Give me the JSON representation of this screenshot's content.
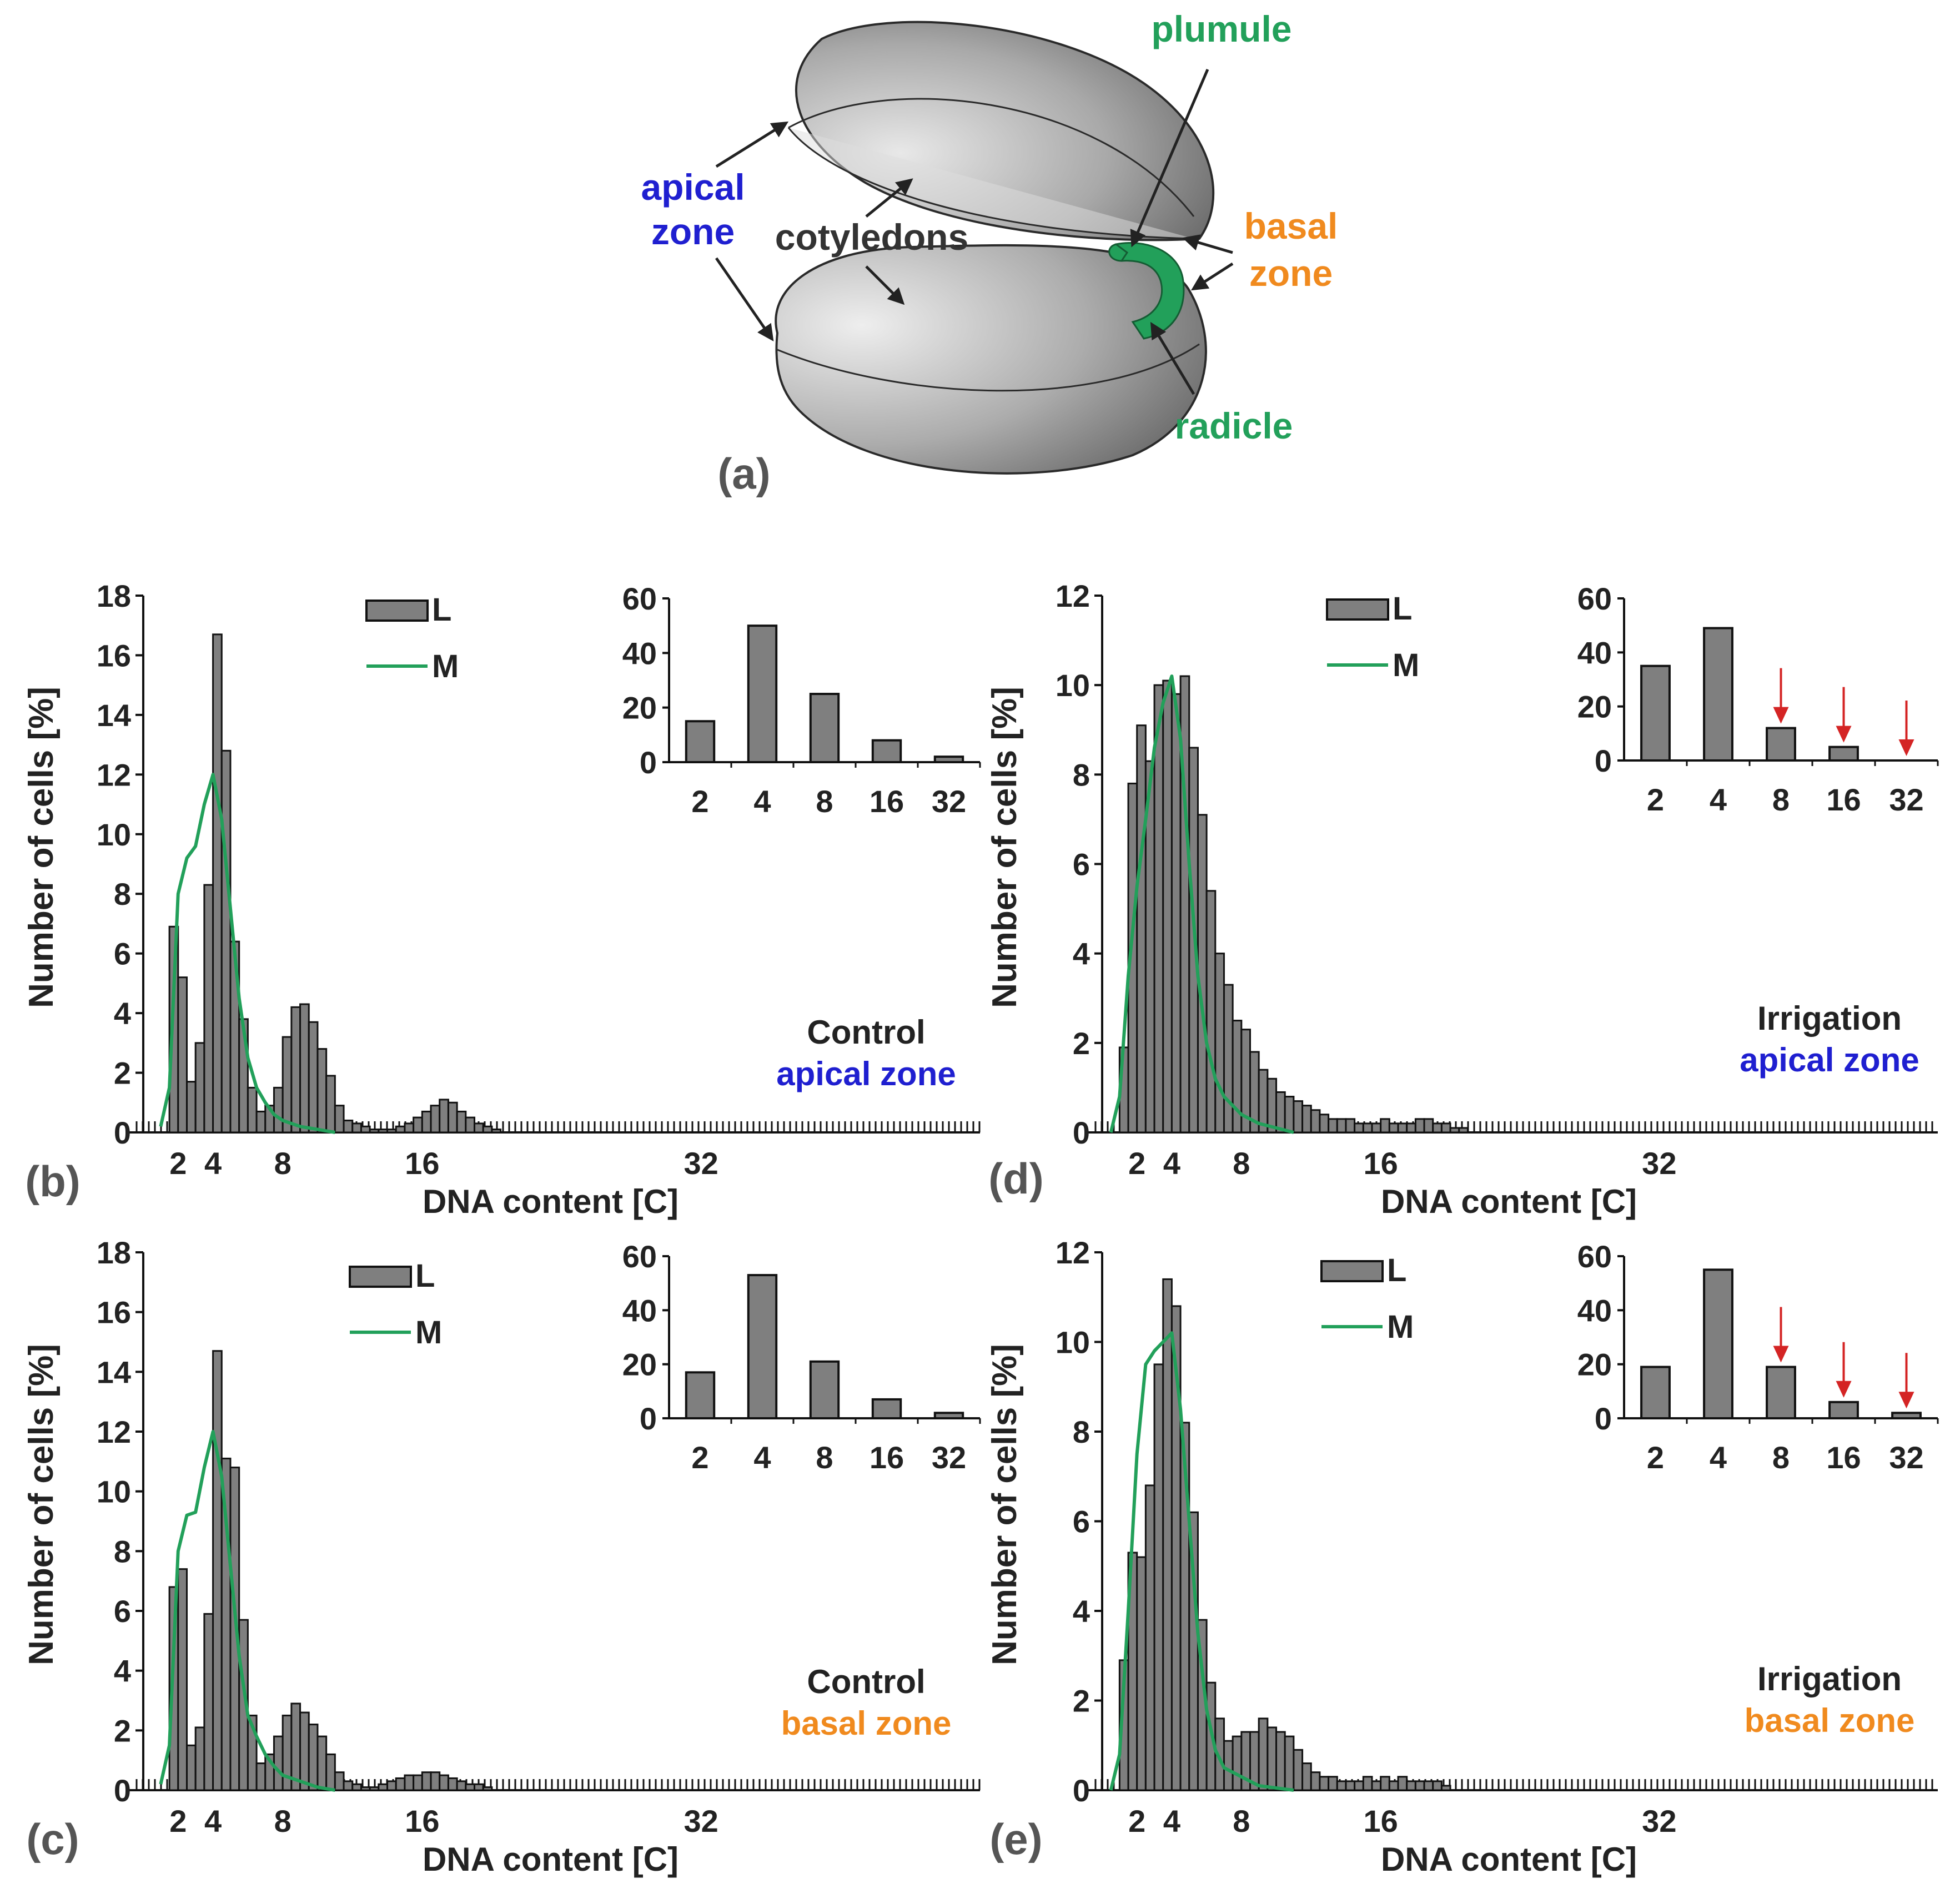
{
  "colors": {
    "bar_fill": "#7f7f7f",
    "bar_stroke": "#111111",
    "line_m": "#22a05a",
    "axis": "#111111",
    "text": "#222222",
    "panel_label": "#555555",
    "apical": "#1f1fd0",
    "basal": "#f08a1e",
    "organ": "#22a05a",
    "arrow_red": "#d42424"
  },
  "diagram": {
    "panel_label": "(a)",
    "labels": {
      "plumule": "plumule",
      "apical_1": "apical",
      "apical_2": "zone",
      "cotyledons": "cotyledons",
      "basal_1": "basal",
      "basal_2": "zone",
      "radicle": "radicle"
    }
  },
  "chart_data": [
    {
      "id": "b",
      "panel_label": "(b)",
      "type": "bar",
      "title": "",
      "xlabel": "DNA content [C]",
      "ylabel": "Number of cells [%]",
      "ylim": [
        0,
        18
      ],
      "yticks": [
        0,
        2,
        4,
        6,
        8,
        10,
        12,
        14,
        16,
        18
      ],
      "xticks": [
        "2",
        "4",
        "8",
        "16",
        "32"
      ],
      "xtick_values": [
        2,
        4,
        8,
        16,
        32
      ],
      "xlim": [
        0,
        48
      ],
      "bin_width": 0.5,
      "series": [
        {
          "name": "L",
          "kind": "histogram",
          "bin_start": 1.5,
          "values": [
            6.9,
            5.2,
            1.7,
            3.0,
            8.3,
            16.7,
            12.8,
            6.4,
            3.8,
            1.5,
            0.7,
            0.9,
            1.5,
            3.2,
            4.2,
            4.3,
            3.7,
            2.8,
            1.9,
            0.9,
            0.4,
            0.3,
            0.2,
            0.1,
            0.1,
            0.1,
            0.2,
            0.3,
            0.5,
            0.7,
            0.9,
            1.1,
            1.0,
            0.7,
            0.5,
            0.3,
            0.2,
            0.1
          ]
        },
        {
          "name": "M",
          "kind": "line",
          "x": [
            1.0,
            1.5,
            2.0,
            2.5,
            3.0,
            3.5,
            4.0,
            4.5,
            5.0,
            5.5,
            6.0,
            6.5,
            7.0,
            7.5,
            8.0,
            9.0,
            10.0,
            11.0
          ],
          "values": [
            0.2,
            1.5,
            8.0,
            9.2,
            9.6,
            11.0,
            12.0,
            10.5,
            7.5,
            4.5,
            2.5,
            1.5,
            1.0,
            0.6,
            0.4,
            0.2,
            0.1,
            0.0
          ]
        }
      ],
      "legend": [
        "L",
        "M"
      ],
      "annotation": [
        "Control",
        "apical zone"
      ],
      "annotation_zone": "apical",
      "inset": {
        "categories": [
          "2",
          "4",
          "8",
          "16",
          "32"
        ],
        "values": [
          15,
          50,
          25,
          8,
          2
        ],
        "ylim": [
          0,
          60
        ],
        "yticks": [
          0,
          20,
          40,
          60
        ],
        "red_arrows": []
      }
    },
    {
      "id": "c",
      "panel_label": "(c)",
      "type": "bar",
      "title": "",
      "xlabel": "DNA content [C]",
      "ylabel": "Number of cells [%]",
      "ylim": [
        0,
        18
      ],
      "yticks": [
        0,
        2,
        4,
        6,
        8,
        10,
        12,
        14,
        16,
        18
      ],
      "xticks": [
        "2",
        "4",
        "8",
        "16",
        "32"
      ],
      "xtick_values": [
        2,
        4,
        8,
        16,
        32
      ],
      "xlim": [
        0,
        48
      ],
      "bin_width": 0.5,
      "series": [
        {
          "name": "L",
          "kind": "histogram",
          "bin_start": 1.5,
          "values": [
            6.8,
            7.4,
            1.5,
            2.1,
            5.9,
            14.7,
            11.1,
            10.8,
            5.7,
            2.5,
            0.9,
            1.2,
            1.8,
            2.5,
            2.9,
            2.6,
            2.2,
            1.8,
            1.2,
            0.6,
            0.3,
            0.2,
            0.1,
            0.1,
            0.2,
            0.3,
            0.4,
            0.5,
            0.5,
            0.6,
            0.6,
            0.5,
            0.4,
            0.3,
            0.2,
            0.2,
            0.1
          ]
        },
        {
          "name": "M",
          "kind": "line",
          "x": [
            1.0,
            1.5,
            2.0,
            2.5,
            3.0,
            3.5,
            4.0,
            4.5,
            5.0,
            5.5,
            6.0,
            6.5,
            7.0,
            7.5,
            8.0,
            9.0,
            10.0,
            11.0
          ],
          "values": [
            0.2,
            1.5,
            8.0,
            9.2,
            9.3,
            10.8,
            12.0,
            10.5,
            7.5,
            4.5,
            2.5,
            1.8,
            1.2,
            0.8,
            0.5,
            0.3,
            0.1,
            0.0
          ]
        }
      ],
      "legend": [
        "L",
        "M"
      ],
      "annotation": [
        "Control",
        "basal zone"
      ],
      "annotation_zone": "basal",
      "inset": {
        "categories": [
          "2",
          "4",
          "8",
          "16",
          "32"
        ],
        "values": [
          17,
          53,
          21,
          7,
          2
        ],
        "ylim": [
          0,
          60
        ],
        "yticks": [
          0,
          20,
          40,
          60
        ],
        "red_arrows": []
      }
    },
    {
      "id": "d",
      "panel_label": "(d)",
      "type": "bar",
      "title": "",
      "xlabel": "DNA content [C]",
      "ylabel": "Number of cells [%]",
      "ylim": [
        0,
        12
      ],
      "yticks": [
        0,
        2,
        4,
        6,
        8,
        10,
        12
      ],
      "xticks": [
        "2",
        "4",
        "8",
        "16",
        "32"
      ],
      "xtick_values": [
        2,
        4,
        8,
        16,
        32
      ],
      "xlim": [
        0,
        48
      ],
      "bin_width": 0.5,
      "series": [
        {
          "name": "L",
          "kind": "histogram",
          "bin_start": 1.0,
          "values": [
            1.9,
            7.8,
            9.1,
            8.3,
            10.0,
            10.1,
            9.8,
            10.2,
            8.6,
            7.1,
            5.4,
            4.0,
            3.3,
            2.5,
            2.3,
            1.8,
            1.4,
            1.2,
            0.9,
            0.8,
            0.7,
            0.6,
            0.5,
            0.4,
            0.3,
            0.3,
            0.3,
            0.2,
            0.2,
            0.2,
            0.3,
            0.2,
            0.2,
            0.2,
            0.3,
            0.3,
            0.2,
            0.2,
            0.1,
            0.1
          ]
        },
        {
          "name": "M",
          "kind": "line",
          "x": [
            0.5,
            1.0,
            1.5,
            2.0,
            2.5,
            3.0,
            3.5,
            4.0,
            4.5,
            5.0,
            5.5,
            6.0,
            6.5,
            7.0,
            8.0,
            9.0,
            10.0,
            11.0
          ],
          "values": [
            0.0,
            0.8,
            3.5,
            5.5,
            7.0,
            8.6,
            9.6,
            10.2,
            8.8,
            6.0,
            3.5,
            2.0,
            1.2,
            0.8,
            0.4,
            0.2,
            0.1,
            0.0
          ]
        }
      ],
      "legend": [
        "L",
        "M"
      ],
      "annotation": [
        "Irrigation",
        "apical zone"
      ],
      "annotation_zone": "apical",
      "inset": {
        "categories": [
          "2",
          "4",
          "8",
          "16",
          "32"
        ],
        "values": [
          35,
          49,
          12,
          5,
          0
        ],
        "ylim": [
          0,
          60
        ],
        "yticks": [
          0,
          20,
          40,
          60
        ],
        "red_arrows": [
          2,
          3,
          4
        ]
      }
    },
    {
      "id": "e",
      "panel_label": "(e)",
      "type": "bar",
      "title": "",
      "xlabel": "DNA content [C]",
      "ylabel": "Number of cells [%]",
      "ylim": [
        0,
        12
      ],
      "yticks": [
        0,
        2,
        4,
        6,
        8,
        10,
        12
      ],
      "xticks": [
        "2",
        "4",
        "8",
        "16",
        "32"
      ],
      "xtick_values": [
        2,
        4,
        8,
        16,
        32
      ],
      "xlim": [
        0,
        48
      ],
      "bin_width": 0.5,
      "series": [
        {
          "name": "L",
          "kind": "histogram",
          "bin_start": 1.0,
          "values": [
            2.9,
            5.3,
            5.2,
            6.8,
            9.5,
            11.4,
            10.8,
            8.2,
            6.2,
            3.8,
            2.4,
            1.6,
            1.1,
            1.2,
            1.3,
            1.3,
            1.6,
            1.4,
            1.3,
            1.2,
            0.9,
            0.6,
            0.4,
            0.3,
            0.3,
            0.2,
            0.2,
            0.2,
            0.3,
            0.2,
            0.3,
            0.2,
            0.3,
            0.2,
            0.2,
            0.2,
            0.2,
            0.1
          ]
        },
        {
          "name": "M",
          "kind": "line",
          "x": [
            0.5,
            1.0,
            1.5,
            2.0,
            2.5,
            3.0,
            3.5,
            4.0,
            4.5,
            5.0,
            5.5,
            6.0,
            6.5,
            7.0,
            8.0,
            9.0,
            10.0,
            11.0
          ],
          "values": [
            0.0,
            0.8,
            4.0,
            7.5,
            9.5,
            9.8,
            10.0,
            10.2,
            8.5,
            6.0,
            3.5,
            1.8,
            0.9,
            0.5,
            0.3,
            0.1,
            0.05,
            0.0
          ]
        }
      ],
      "legend": [
        "L",
        "M"
      ],
      "annotation": [
        "Irrigation",
        "basal zone"
      ],
      "annotation_zone": "basal",
      "inset": {
        "categories": [
          "2",
          "4",
          "8",
          "16",
          "32"
        ],
        "values": [
          19,
          55,
          19,
          6,
          2
        ],
        "ylim": [
          0,
          60
        ],
        "yticks": [
          0,
          20,
          40,
          60
        ],
        "red_arrows": [
          2,
          3,
          4
        ]
      }
    }
  ]
}
